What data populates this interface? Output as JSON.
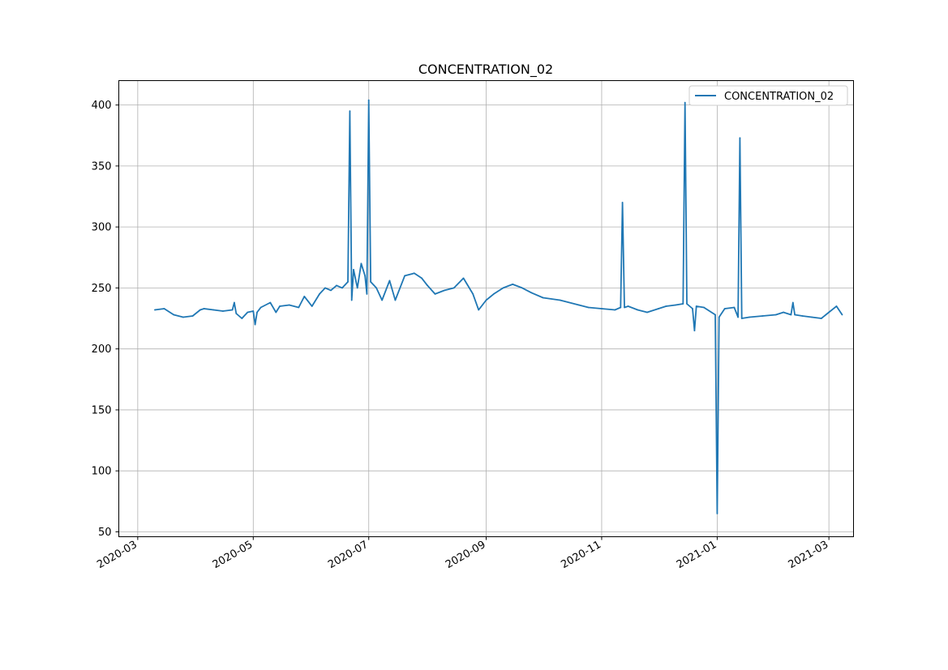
{
  "chart_data": {
    "type": "line",
    "title": "CONCENTRATION_02",
    "xlabel": "",
    "ylabel": "",
    "x_type": "date",
    "xlim": [
      "2020-02-20",
      "2021-03-14"
    ],
    "ylim": [
      46,
      420
    ],
    "grid": true,
    "legend_placement": "top-right",
    "x_ticks": [
      "2020-03",
      "2020-05",
      "2020-07",
      "2020-09",
      "2020-11",
      "2021-01",
      "2021-03"
    ],
    "y_ticks": [
      50,
      100,
      150,
      200,
      250,
      300,
      350,
      400
    ],
    "series": [
      {
        "name": "CONCENTRATION_02",
        "color": "#1f77b4",
        "x": [
          "2020-03-10",
          "2020-03-15",
          "2020-03-20",
          "2020-03-25",
          "2020-03-30",
          "2020-04-03",
          "2020-04-05",
          "2020-04-10",
          "2020-04-15",
          "2020-04-20",
          "2020-04-21",
          "2020-04-22",
          "2020-04-25",
          "2020-04-28",
          "2020-05-01",
          "2020-05-02",
          "2020-05-03",
          "2020-05-05",
          "2020-05-10",
          "2020-05-13",
          "2020-05-15",
          "2020-05-20",
          "2020-05-25",
          "2020-05-28",
          "2020-06-01",
          "2020-06-05",
          "2020-06-08",
          "2020-06-11",
          "2020-06-14",
          "2020-06-17",
          "2020-06-20",
          "2020-06-21",
          "2020-06-22",
          "2020-06-23",
          "2020-06-25",
          "2020-06-27",
          "2020-06-29",
          "2020-06-30",
          "2020-07-01",
          "2020-07-02",
          "2020-07-05",
          "2020-07-08",
          "2020-07-12",
          "2020-07-15",
          "2020-07-20",
          "2020-07-25",
          "2020-07-29",
          "2020-08-01",
          "2020-08-05",
          "2020-08-10",
          "2020-08-15",
          "2020-08-20",
          "2020-08-25",
          "2020-08-28",
          "2020-09-01",
          "2020-09-05",
          "2020-09-10",
          "2020-09-15",
          "2020-09-20",
          "2020-09-25",
          "2020-10-01",
          "2020-10-10",
          "2020-10-20",
          "2020-10-25",
          "2020-11-01",
          "2020-11-08",
          "2020-11-11",
          "2020-11-12",
          "2020-11-13",
          "2020-11-15",
          "2020-11-20",
          "2020-11-25",
          "2020-12-01",
          "2020-12-05",
          "2020-12-10",
          "2020-12-14",
          "2020-12-15",
          "2020-12-16",
          "2020-12-19",
          "2020-12-20",
          "2020-12-21",
          "2020-12-25",
          "2020-12-31",
          "2021-01-01",
          "2021-01-02",
          "2021-01-05",
          "2021-01-10",
          "2021-01-12",
          "2021-01-13",
          "2021-01-14",
          "2021-01-18",
          "2021-01-25",
          "2021-02-01",
          "2021-02-05",
          "2021-02-09",
          "2021-02-10",
          "2021-02-11",
          "2021-02-15",
          "2021-02-20",
          "2021-02-25",
          "2021-03-01",
          "2021-03-05",
          "2021-03-08"
        ],
        "y": [
          232,
          233,
          228,
          226,
          227,
          232,
          233,
          232,
          231,
          232,
          238,
          229,
          225,
          230,
          231,
          220,
          230,
          234,
          238,
          230,
          235,
          236,
          234,
          243,
          235,
          245,
          250,
          248,
          252,
          250,
          255,
          395,
          240,
          265,
          250,
          270,
          260,
          245,
          404,
          255,
          250,
          240,
          256,
          240,
          260,
          262,
          258,
          252,
          245,
          248,
          250,
          258,
          245,
          232,
          240,
          245,
          250,
          253,
          250,
          246,
          242,
          240,
          236,
          234,
          233,
          232,
          234,
          320,
          234,
          235,
          232,
          230,
          233,
          235,
          236,
          237,
          402,
          237,
          233,
          215,
          235,
          234,
          228,
          65,
          226,
          233,
          234,
          226,
          373,
          225,
          226,
          227,
          228,
          230,
          228,
          238,
          228,
          227,
          226,
          225,
          230,
          235,
          228
        ]
      }
    ]
  }
}
